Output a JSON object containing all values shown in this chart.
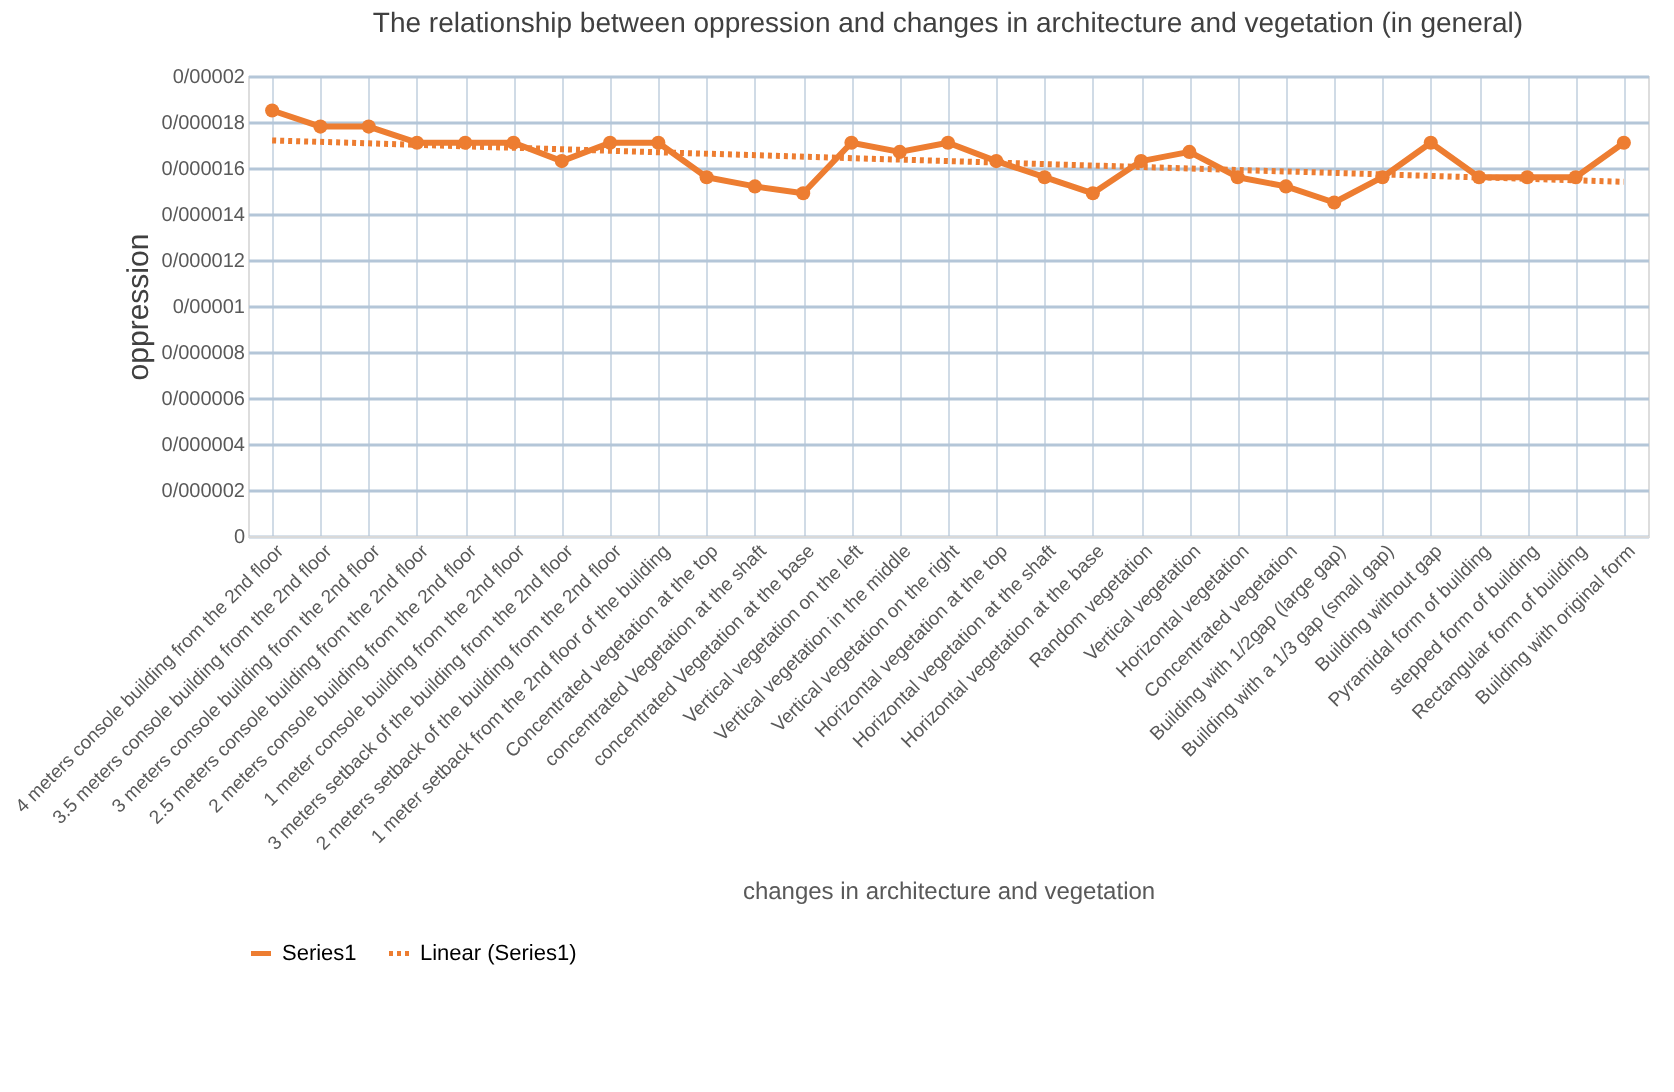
{
  "chart_data": {
    "type": "line",
    "title": "The relationship between oppression and changes in architecture and vegetation (in general)",
    "xlabel": "changes in architecture and vegetation",
    "ylabel": "oppression",
    "categories": [
      "4 meters console building from the 2nd floor",
      "3.5 meters console building from the 2nd floor",
      "3 meters console building from the 2nd floor",
      "2.5 meters console building from the 2nd floor",
      "2 meters console building from the 2nd floor",
      "1 meter console building from the 2nd floor",
      "3 meters setback of the building from the 2nd floor",
      "2 meters setback of the building from the 2nd floor",
      "1 meter setback from the 2nd floor of the building",
      "Concentrated vegetation at the top",
      "concentrated Vegetation at the shaft",
      "concentrated Vegetation at the base",
      "Vertical vegetation on the left",
      "Vertical vegetation in the middle",
      "Vertical vegetation on the right",
      "Horizontal vegetation at the top",
      "Horizontal vegetation at the shaft",
      "Horizontal vegetation at the base",
      "Random vegetation",
      "Vertical vegetation",
      "Horizontal vegetation",
      "Concentrated vegetation",
      "Building with 1/2gap (large gap)",
      "Building with a 1/3 gap   (small gap)",
      "Building without gap",
      "Pyramidal form of building",
      "stepped form of building",
      "Rectangular form of building",
      "Building with original form"
    ],
    "series": [
      {
        "name": "Series1",
        "color": "#ed7d31",
        "marker": "circle",
        "line_style": "solid",
        "values": [
          1.85e-05,
          1.78e-05,
          1.78e-05,
          1.71e-05,
          1.71e-05,
          1.71e-05,
          1.63e-05,
          1.71e-05,
          1.71e-05,
          1.56e-05,
          1.52e-05,
          1.49e-05,
          1.71e-05,
          1.67e-05,
          1.71e-05,
          1.63e-05,
          1.56e-05,
          1.49e-05,
          1.63e-05,
          1.67e-05,
          1.56e-05,
          1.52e-05,
          1.45e-05,
          1.56e-05,
          1.71e-05,
          1.56e-05,
          1.56e-05,
          1.56e-05,
          1.71e-05
        ]
      },
      {
        "name": "Linear (Series1)",
        "type": "line",
        "color": "#ed7d31",
        "marker": "none",
        "line_style": "dotted",
        "x": [
          "4 meters console building from the 2nd floor",
          "Building with original form"
        ],
        "values": [
          1.72e-05,
          1.54e-05
        ]
      }
    ],
    "ylim": [
      0,
      2e-05
    ],
    "yticks": [
      0,
      {
        "value": 2e-06,
        "label": "0/000002"
      },
      {
        "value": 4e-06,
        "label": "0/000004"
      },
      {
        "value": 6e-06,
        "label": "0/000006"
      },
      {
        "value": 8e-06,
        "label": "0/000008"
      },
      {
        "value": 1e-05,
        "label": "0/00001"
      },
      {
        "value": 1.2e-05,
        "label": "0/000012"
      },
      {
        "value": 1.4e-05,
        "label": "0/000014"
      },
      {
        "value": 1.6e-05,
        "label": "0/000016"
      },
      {
        "value": 1.8e-05,
        "label": "0/000018"
      },
      {
        "value": 2e-05,
        "label": "0/00002"
      }
    ],
    "grid": true,
    "legend": "bottom"
  }
}
